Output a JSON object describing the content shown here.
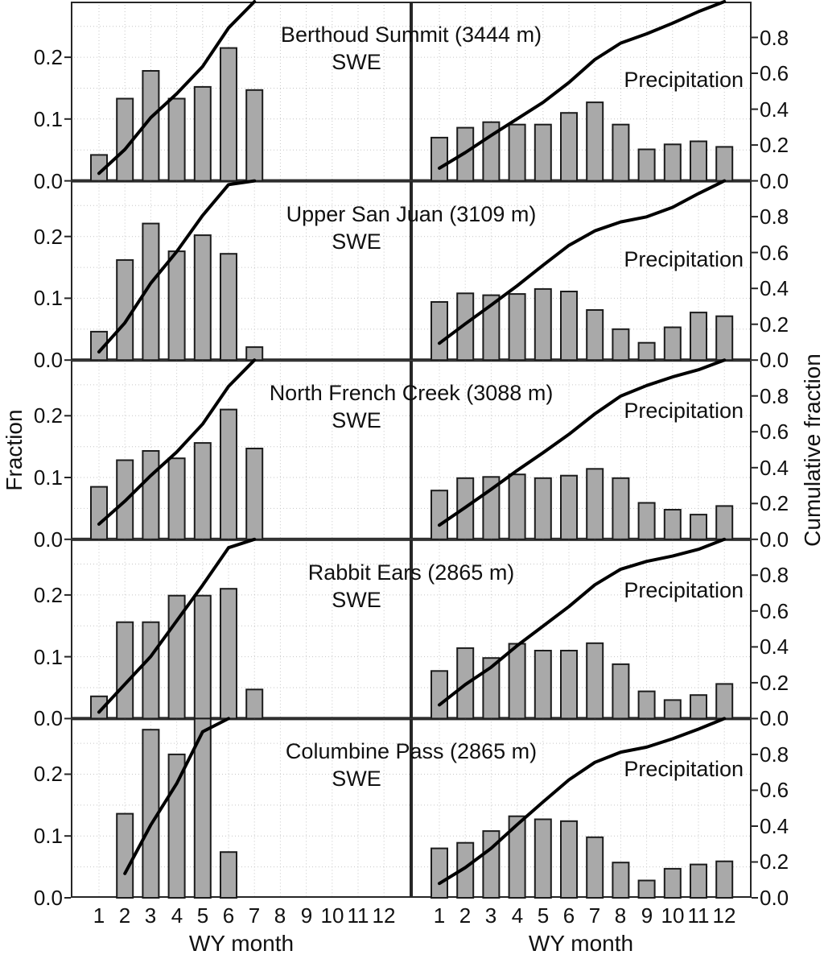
{
  "figure": {
    "left_ylabel": "Fraction",
    "right_ylabel": "Cumulative fraction",
    "xlabel": "WY month",
    "x_tick_labels": [
      "1",
      "2",
      "3",
      "4",
      "5",
      "6",
      "7",
      "8",
      "9",
      "10",
      "11",
      "12"
    ],
    "left_axis": {
      "tick_values": [
        0.2,
        0.1,
        0.0
      ],
      "tick_labels": [
        "0.2",
        "0.1",
        "0.0"
      ],
      "range": [
        0,
        0.29
      ],
      "gridline_values": [
        0.05,
        0.1,
        0.15,
        0.2,
        0.25
      ]
    },
    "right_axis": {
      "tick_values": [
        0.8,
        0.6,
        0.4,
        0.2,
        0.0
      ],
      "tick_labels": [
        "0.8",
        "0.6",
        "0.4",
        "0.2",
        "0.0"
      ],
      "range": [
        0,
        1.0
      ]
    },
    "line_note": "black line = cumulative fraction of the monthly bar values, read on the right axis",
    "grid": "dotted light-gray gridlines at every month and every 0.05 fraction",
    "colors": {
      "bar_fill": "#a9a9a9",
      "bar_stroke": "#1c1c1c",
      "line": "#000000",
      "grid": "#c6c6c6",
      "axis": "#262626",
      "text": "#111111",
      "background": "#ffffff"
    }
  },
  "chart_data": [
    {
      "type": "bar",
      "station": "Berthoud Summit (3444 m)",
      "panels": [
        {
          "label": "SWE",
          "x": [
            1,
            2,
            3,
            4,
            5,
            6,
            7
          ],
          "values": [
            0.042,
            0.133,
            0.178,
            0.133,
            0.152,
            0.215,
            0.147
          ]
        },
        {
          "label": "Precipitation",
          "x": [
            1,
            2,
            3,
            4,
            5,
            6,
            7,
            8,
            9,
            10,
            11,
            12
          ],
          "values": [
            0.07,
            0.086,
            0.095,
            0.091,
            0.091,
            0.11,
            0.127,
            0.091,
            0.051,
            0.059,
            0.064,
            0.055
          ]
        }
      ]
    },
    {
      "type": "bar",
      "station": "Upper San Juan (3109 m)",
      "panels": [
        {
          "label": "SWE",
          "x": [
            1,
            2,
            3,
            4,
            5,
            6,
            7
          ],
          "values": [
            0.046,
            0.162,
            0.221,
            0.176,
            0.202,
            0.172,
            0.021
          ]
        },
        {
          "label": "Precipitation",
          "x": [
            1,
            2,
            3,
            4,
            5,
            6,
            7,
            8,
            9,
            10,
            11,
            12
          ],
          "values": [
            0.094,
            0.108,
            0.105,
            0.107,
            0.115,
            0.111,
            0.081,
            0.05,
            0.028,
            0.053,
            0.077,
            0.071
          ]
        }
      ]
    },
    {
      "type": "bar",
      "station": "North French Creek (3088 m)",
      "panels": [
        {
          "label": "SWE",
          "x": [
            1,
            2,
            3,
            4,
            5,
            6,
            7
          ],
          "values": [
            0.085,
            0.128,
            0.143,
            0.131,
            0.156,
            0.21,
            0.147
          ]
        },
        {
          "label": "Precipitation",
          "x": [
            1,
            2,
            3,
            4,
            5,
            6,
            7,
            8,
            9,
            10,
            11,
            12
          ],
          "values": [
            0.079,
            0.099,
            0.101,
            0.105,
            0.099,
            0.103,
            0.114,
            0.099,
            0.059,
            0.048,
            0.04,
            0.054
          ]
        }
      ]
    },
    {
      "type": "bar",
      "station": "Rabbit Ears (2865 m)",
      "panels": [
        {
          "label": "SWE",
          "x": [
            1,
            2,
            3,
            4,
            5,
            6,
            7
          ],
          "values": [
            0.036,
            0.156,
            0.156,
            0.199,
            0.199,
            0.21,
            0.047
          ]
        },
        {
          "label": "Precipitation",
          "x": [
            1,
            2,
            3,
            4,
            5,
            6,
            7,
            8,
            9,
            10,
            11,
            12
          ],
          "values": [
            0.077,
            0.114,
            0.098,
            0.121,
            0.11,
            0.11,
            0.122,
            0.088,
            0.044,
            0.03,
            0.038,
            0.056
          ]
        }
      ]
    },
    {
      "type": "bar",
      "station": "Columbine Pass (2865 m)",
      "panels": [
        {
          "label": "SWE",
          "x": [
            2,
            3,
            4,
            5,
            6
          ],
          "values": [
            0.136,
            0.272,
            0.232,
            0.29,
            0.074
          ]
        },
        {
          "label": "Precipitation",
          "x": [
            1,
            2,
            3,
            4,
            5,
            6,
            7,
            8,
            9,
            10,
            11,
            12
          ],
          "values": [
            0.08,
            0.089,
            0.108,
            0.132,
            0.127,
            0.124,
            0.098,
            0.057,
            0.028,
            0.047,
            0.054,
            0.059
          ]
        }
      ]
    }
  ]
}
